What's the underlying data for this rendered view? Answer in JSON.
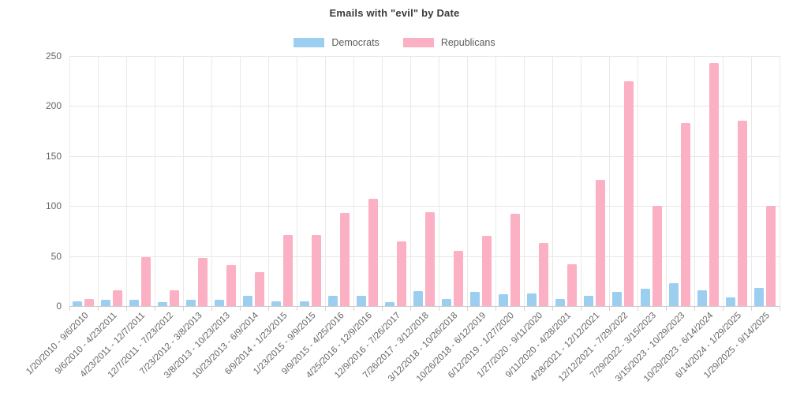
{
  "chart_data": {
    "type": "bar",
    "title": "Emails with \"evil\" by Date",
    "xlabel": "",
    "ylabel": "",
    "ylim": [
      0,
      250
    ],
    "yticks": [
      0,
      50,
      100,
      150,
      200,
      250
    ],
    "grid": true,
    "legend_position": "top",
    "categories": [
      "1/20/2010 - 9/6/2010",
      "9/6/2010 - 4/23/2011",
      "4/23/2011 - 12/7/2011",
      "12/7/2011 - 7/23/2012",
      "7/23/2012 - 3/8/2013",
      "3/8/2013 - 10/23/2013",
      "10/23/2013 - 6/9/2014",
      "6/9/2014 - 1/23/2015",
      "1/23/2015 - 9/9/2015",
      "9/9/2015 - 4/25/2016",
      "4/25/2016 - 12/9/2016",
      "12/9/2016 - 7/26/2017",
      "7/26/2017 - 3/12/2018",
      "3/12/2018 - 10/26/2018",
      "10/26/2018 - 6/12/2019",
      "6/12/2019 - 1/27/2020",
      "1/27/2020 - 9/11/2020",
      "9/11/2020 - 4/28/2021",
      "4/28/2021 - 12/12/2021",
      "12/12/2021 - 7/29/2022",
      "7/29/2022 - 3/15/2023",
      "3/15/2023 - 10/29/2023",
      "10/29/2023 - 6/14/2024",
      "6/14/2024 - 1/29/2025",
      "1/29/2025 - 9/14/2025"
    ],
    "series": [
      {
        "name": "Democrats",
        "color": "#9CCEF0",
        "values": [
          5,
          6,
          6,
          4,
          6,
          6,
          10,
          5,
          5,
          10,
          10,
          4,
          15,
          7,
          14,
          12,
          13,
          7,
          10,
          14,
          17,
          23,
          16,
          9,
          18
        ]
      },
      {
        "name": "Republicans",
        "color": "#FBB0C3",
        "values": [
          7,
          16,
          49,
          16,
          48,
          41,
          34,
          71,
          71,
          93,
          107,
          65,
          94,
          55,
          70,
          92,
          63,
          42,
          126,
          225,
          100,
          183,
          243,
          185,
          100
        ]
      }
    ]
  },
  "style": {
    "background": "#FFFFFF",
    "gridline_color": "#E7E7E7",
    "axis_line_color": "#CCCCCC",
    "tick_label_color": "#666666",
    "title_color": "#3A3A3A"
  }
}
